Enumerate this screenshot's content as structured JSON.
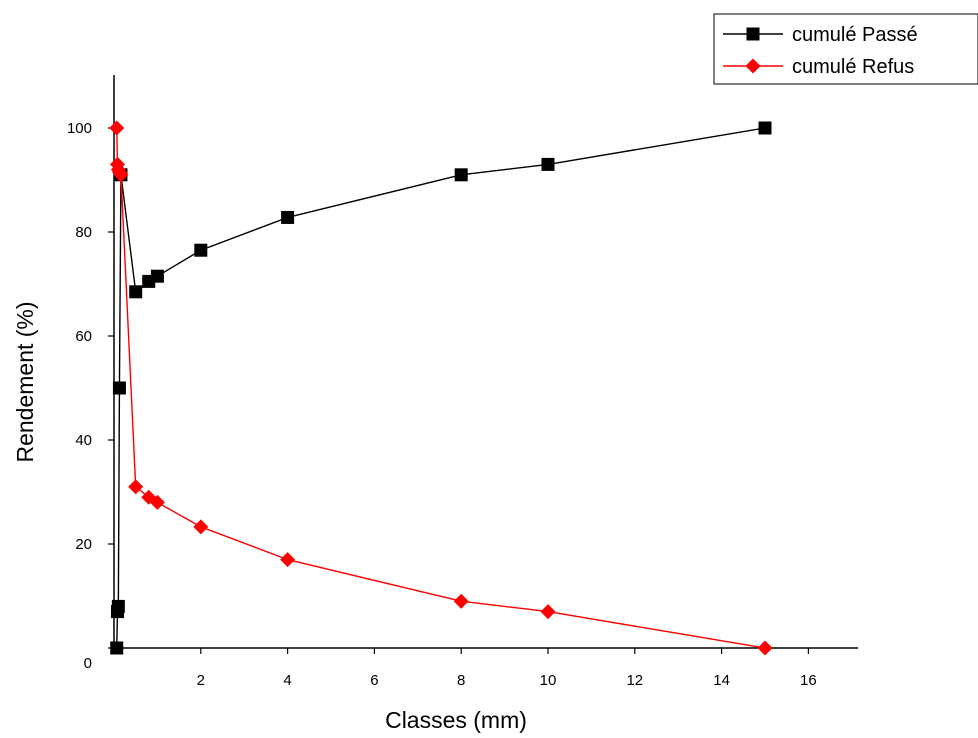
{
  "chart_data": {
    "type": "line",
    "xlabel": "Classes (mm)",
    "ylabel": "Rendement (%)",
    "xlim": [
      0,
      17
    ],
    "ylim": [
      0,
      110
    ],
    "x_ticks": [
      0,
      2,
      4,
      6,
      8,
      10,
      12,
      14,
      16
    ],
    "y_ticks": [
      0,
      20,
      40,
      60,
      80,
      100
    ],
    "legend_position": "top-right",
    "series": [
      {
        "name": "cumulé Passé",
        "color": "#000000",
        "marker": "square",
        "x": [
          0.063,
          0.08,
          0.1,
          0.125,
          0.16,
          0.5,
          0.8,
          1,
          2,
          4,
          8,
          10,
          15
        ],
        "y": [
          0,
          7,
          8,
          50,
          91,
          68.5,
          70.5,
          71.5,
          76.5,
          82.8,
          91,
          93,
          100
        ]
      },
      {
        "name": "cumulé Refus",
        "color": "#ff0000",
        "marker": "diamond",
        "x": [
          0.063,
          0.08,
          0.1,
          0.125,
          0.16,
          0.5,
          0.8,
          1,
          2,
          4,
          8,
          10,
          15
        ],
        "y": [
          100,
          93,
          92,
          91.5,
          91,
          31,
          29,
          28,
          23.3,
          17,
          9,
          7,
          0
        ]
      }
    ]
  }
}
